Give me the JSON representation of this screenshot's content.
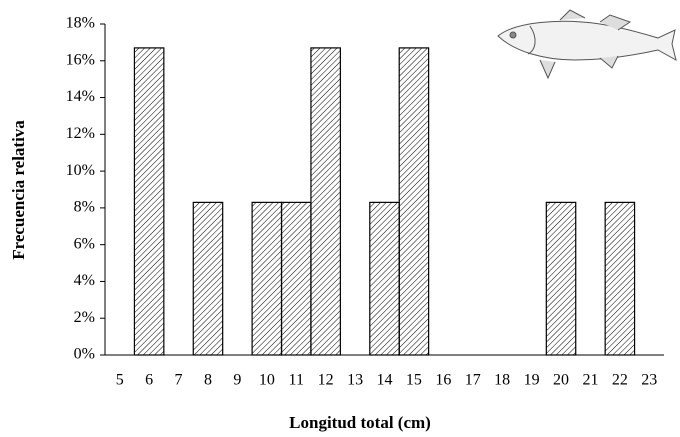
{
  "chart_data": {
    "type": "bar",
    "x_label": "Longitud total (cm)",
    "y_label": "Frecuencia relativa",
    "categories": [
      "5",
      "6",
      "7",
      "8",
      "9",
      "10",
      "11",
      "12",
      "13",
      "14",
      "15",
      "16",
      "17",
      "18",
      "19",
      "20",
      "21",
      "22",
      "23"
    ],
    "values": [
      0,
      16.7,
      0,
      8.3,
      0,
      8.3,
      8.3,
      16.7,
      0,
      8.3,
      16.7,
      0,
      0,
      0,
      0,
      8.3,
      0,
      8.3,
      0
    ],
    "color": "#000000",
    "ylim": [
      0,
      18
    ],
    "yticks": [
      {
        "value": 0,
        "label": "0%"
      },
      {
        "value": 2,
        "label": "2%"
      },
      {
        "value": 4,
        "label": "4%"
      },
      {
        "value": 6,
        "label": "6%"
      },
      {
        "value": 8,
        "label": "8%"
      },
      {
        "value": 10,
        "label": "10%"
      },
      {
        "value": 12,
        "label": "12%"
      },
      {
        "value": 14,
        "label": "14%"
      },
      {
        "value": 16,
        "label": "16%"
      },
      {
        "value": 18,
        "label": "18%"
      }
    ],
    "grid": false
  }
}
